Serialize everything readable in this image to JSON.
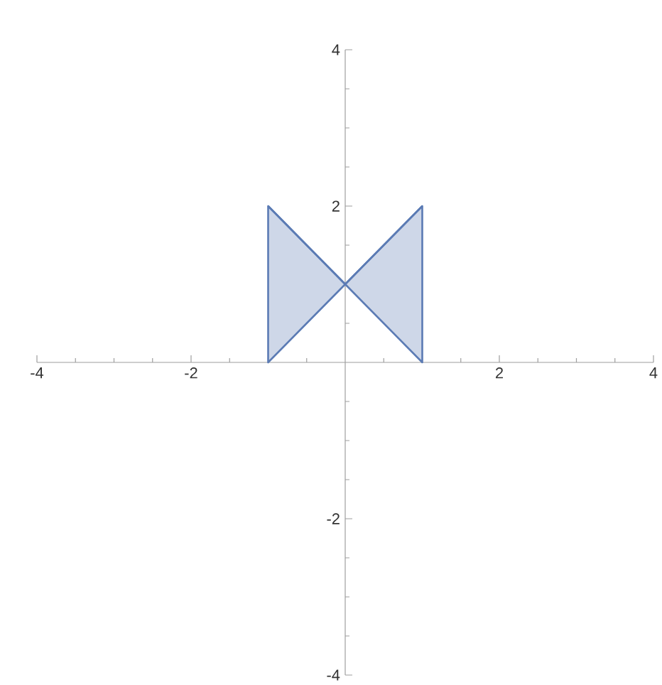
{
  "chart_data": {
    "type": "line",
    "series": [
      {
        "color": "#5b7bb4",
        "x": [
          -1,
          0,
          1
        ],
        "values": [
          2,
          1,
          2
        ],
        "lower": [
          0,
          1,
          0
        ],
        "upper": [
          2,
          1,
          2
        ]
      }
    ],
    "xlim": [
      -4,
      4
    ],
    "ylim": [
      -4,
      4
    ],
    "xticks": [
      -4,
      {
        "value": -3.5,
        "label": null
      },
      {
        "value": -3,
        "label": null
      },
      {
        "value": -2.5,
        "label": null
      },
      -2,
      {
        "value": -1.5,
        "label": null
      },
      {
        "value": -1,
        "label": null
      },
      {
        "value": -0.5,
        "label": null
      },
      {
        "value": 0.5,
        "label": null
      },
      {
        "value": 1,
        "label": null
      },
      {
        "value": 1.5,
        "label": null
      },
      2,
      {
        "value": 2.5,
        "label": null
      },
      {
        "value": 3,
        "label": null
      },
      {
        "value": 3.5,
        "label": null
      },
      4
    ],
    "yticks": [
      -4,
      {
        "value": -3.5,
        "label": null
      },
      {
        "value": -3,
        "label": null
      },
      {
        "value": -2.5,
        "label": null
      },
      -2,
      {
        "value": -1.5,
        "label": null
      },
      {
        "value": -1,
        "label": null
      },
      {
        "value": -0.5,
        "label": null
      },
      {
        "value": 0.5,
        "label": null
      },
      {
        "value": 1,
        "label": null
      },
      {
        "value": 1.5,
        "label": null
      },
      2,
      {
        "value": 2.5,
        "label": null
      },
      {
        "value": 3,
        "label": null
      },
      {
        "value": 3.5,
        "label": null
      },
      4
    ]
  }
}
